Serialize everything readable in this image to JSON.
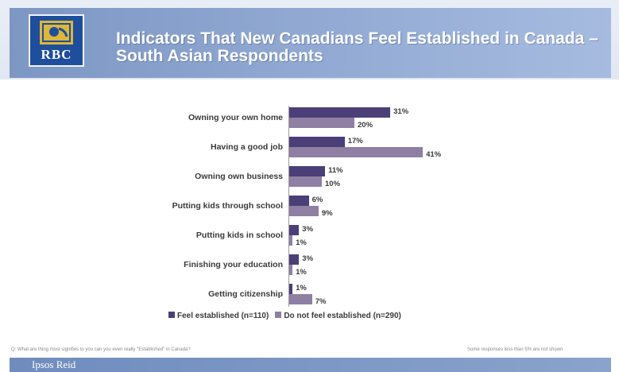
{
  "header": {
    "logo_text": "RBC",
    "title": "Indicators That New Canadians Feel Established in Canada  – South Asian Respondents"
  },
  "chart_data": {
    "type": "bar",
    "orientation": "horizontal",
    "categories": [
      "Owning your own home",
      "Having a good job",
      "Owning own business",
      "Putting kids through school",
      "Putting kids in school",
      "Finishing your education",
      "Getting citizenship"
    ],
    "series": [
      {
        "name": "Feel established (n=110)",
        "values": [
          31,
          17,
          11,
          6,
          3,
          3,
          1
        ],
        "labels": [
          "31%",
          "17%",
          "11%",
          "6%",
          "3%",
          "3%",
          "1%"
        ],
        "color": "#4b3f78"
      },
      {
        "name": "Do not feel established (n=290)",
        "values": [
          20,
          41,
          10,
          9,
          1,
          1,
          7
        ],
        "labels": [
          "20%",
          "41%",
          "10%",
          "9%",
          "1%",
          "1%",
          "7%"
        ],
        "color": "#8f7fa3"
      }
    ],
    "xlim": [
      0,
      50
    ],
    "legend_position": "bottom"
  },
  "footnote_left": "Q: What are thing most signifies to you can you even really \"Established\" in Canada?",
  "footnote_right": "Some responses less than 5% are not shown",
  "footer": {
    "brand": "Ipsos Reid",
    "tagline": "",
    "right_text": ""
  }
}
